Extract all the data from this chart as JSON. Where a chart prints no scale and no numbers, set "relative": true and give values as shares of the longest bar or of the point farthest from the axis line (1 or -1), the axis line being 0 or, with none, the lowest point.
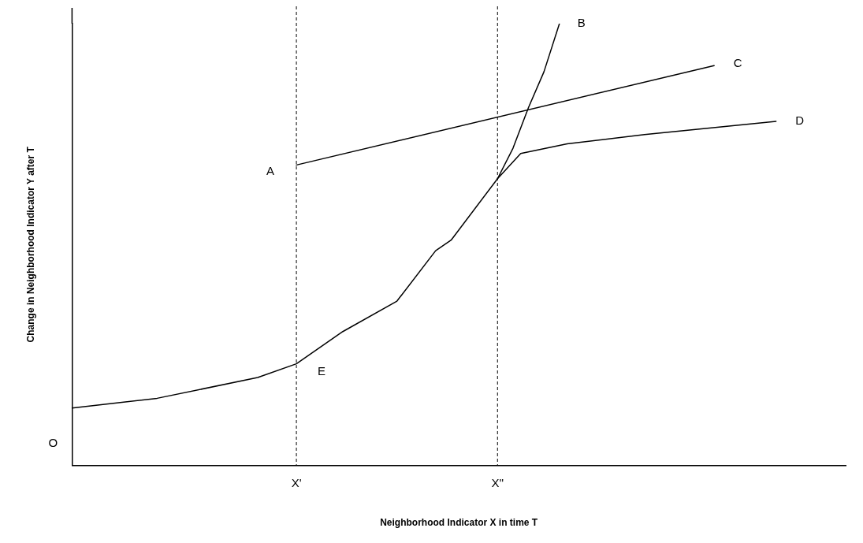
{
  "chart_data": {
    "type": "line",
    "relative": true,
    "xlabel": "Neighborhood Indicator X in time T",
    "ylabel": "Change in Neighborhood Indicator Y after T",
    "categories": [
      null,
      null,
      null,
      null,
      null,
      null,
      null,
      null,
      null,
      null,
      null,
      null,
      null,
      null,
      null,
      null,
      null,
      null,
      null,
      null,
      null,
      null,
      null,
      null,
      null,
      null,
      null,
      null,
      null,
      "X'",
      null,
      null,
      null,
      null,
      null,
      null,
      null,
      null,
      null,
      null,
      null,
      null,
      null,
      null,
      null,
      null,
      null,
      null,
      null,
      null,
      null,
      null,
      null,
      null,
      null,
      "X''",
      null,
      null,
      null,
      null,
      null,
      null,
      null,
      null,
      null,
      null,
      null,
      null,
      null,
      null,
      null,
      null,
      null,
      null,
      null,
      null,
      null,
      null,
      null,
      null,
      null,
      null,
      null,
      null,
      null,
      null,
      null,
      null,
      null,
      null,
      null,
      null,
      null,
      null,
      null,
      null,
      null,
      null,
      null,
      null,
      null
    ],
    "series": [
      {
        "color": "#000000",
        "values": [
          0.13,
          null,
          null,
          null,
          null,
          null,
          null,
          null,
          null,
          null,
          null,
          0.152,
          null,
          null,
          null,
          null,
          null,
          null,
          null,
          null,
          null,
          null,
          null,
          null,
          0.199,
          null,
          null,
          null,
          null,
          0.23,
          null,
          null,
          null,
          null,
          null,
          0.303,
          null,
          null,
          null,
          null,
          null,
          null,
          0.372,
          null,
          null,
          null,
          null,
          0.486,
          null,
          0.51,
          null,
          null,
          null,
          null,
          null,
          0.649,
          null,
          0.718,
          null,
          0.81,
          null,
          0.891,
          null,
          1,
          null,
          null,
          null,
          null,
          null,
          null,
          null,
          null,
          null,
          null,
          null,
          null,
          null,
          null,
          null,
          null,
          null,
          null,
          null,
          null,
          null,
          null,
          null,
          null,
          null,
          null,
          null,
          null,
          null,
          null,
          null,
          null,
          null,
          null,
          null,
          null,
          null
        ]
      },
      {
        "color": "#000000",
        "values": [
          null,
          null,
          null,
          null,
          null,
          null,
          null,
          null,
          null,
          null,
          null,
          null,
          null,
          null,
          null,
          null,
          null,
          null,
          null,
          null,
          null,
          null,
          null,
          null,
          null,
          null,
          null,
          null,
          null,
          0.68,
          null,
          null,
          null,
          null,
          null,
          null,
          null,
          null,
          null,
          null,
          null,
          null,
          null,
          null,
          null,
          null,
          null,
          null,
          null,
          null,
          null,
          null,
          null,
          null,
          null,
          null,
          null,
          null,
          null,
          null,
          null,
          null,
          null,
          null,
          null,
          null,
          null,
          null,
          null,
          null,
          null,
          null,
          null,
          null,
          null,
          null,
          null,
          null,
          null,
          null,
          null,
          null,
          null,
          0.905,
          null,
          null,
          null,
          null,
          null,
          null,
          null,
          null,
          null,
          null,
          null,
          null,
          null,
          null,
          null,
          null,
          null
        ]
      },
      {
        "color": "#000000",
        "values": [
          null,
          null,
          null,
          null,
          null,
          null,
          null,
          null,
          null,
          null,
          null,
          null,
          null,
          null,
          null,
          null,
          null,
          null,
          null,
          null,
          null,
          null,
          null,
          null,
          null,
          null,
          null,
          null,
          null,
          null,
          null,
          null,
          null,
          null,
          null,
          null,
          null,
          null,
          null,
          null,
          null,
          null,
          null,
          null,
          null,
          null,
          null,
          null,
          null,
          null,
          null,
          null,
          null,
          null,
          null,
          0.649,
          null,
          null,
          0.706,
          null,
          null,
          null,
          null,
          null,
          0.728,
          null,
          null,
          null,
          null,
          null,
          null,
          null,
          null,
          null,
          0.749,
          null,
          null,
          null,
          null,
          null,
          null,
          null,
          null,
          null,
          null,
          null,
          null,
          null,
          null,
          null,
          null,
          0.779,
          null,
          null,
          null,
          null,
          null,
          null,
          null,
          null,
          null
        ]
      }
    ],
    "ref_lines": [
      {
        "axis": "x",
        "value": "X'",
        "line_style": "dashed",
        "color": "#000000"
      },
      {
        "axis": "x",
        "value": "X''",
        "line_style": "dashed",
        "color": "#000000"
      }
    ],
    "annotations": [
      "A",
      "B",
      "C",
      "D",
      "E",
      "O"
    ],
    "grid": false,
    "legend": false,
    "marker": "none",
    "line_style": "solid"
  }
}
